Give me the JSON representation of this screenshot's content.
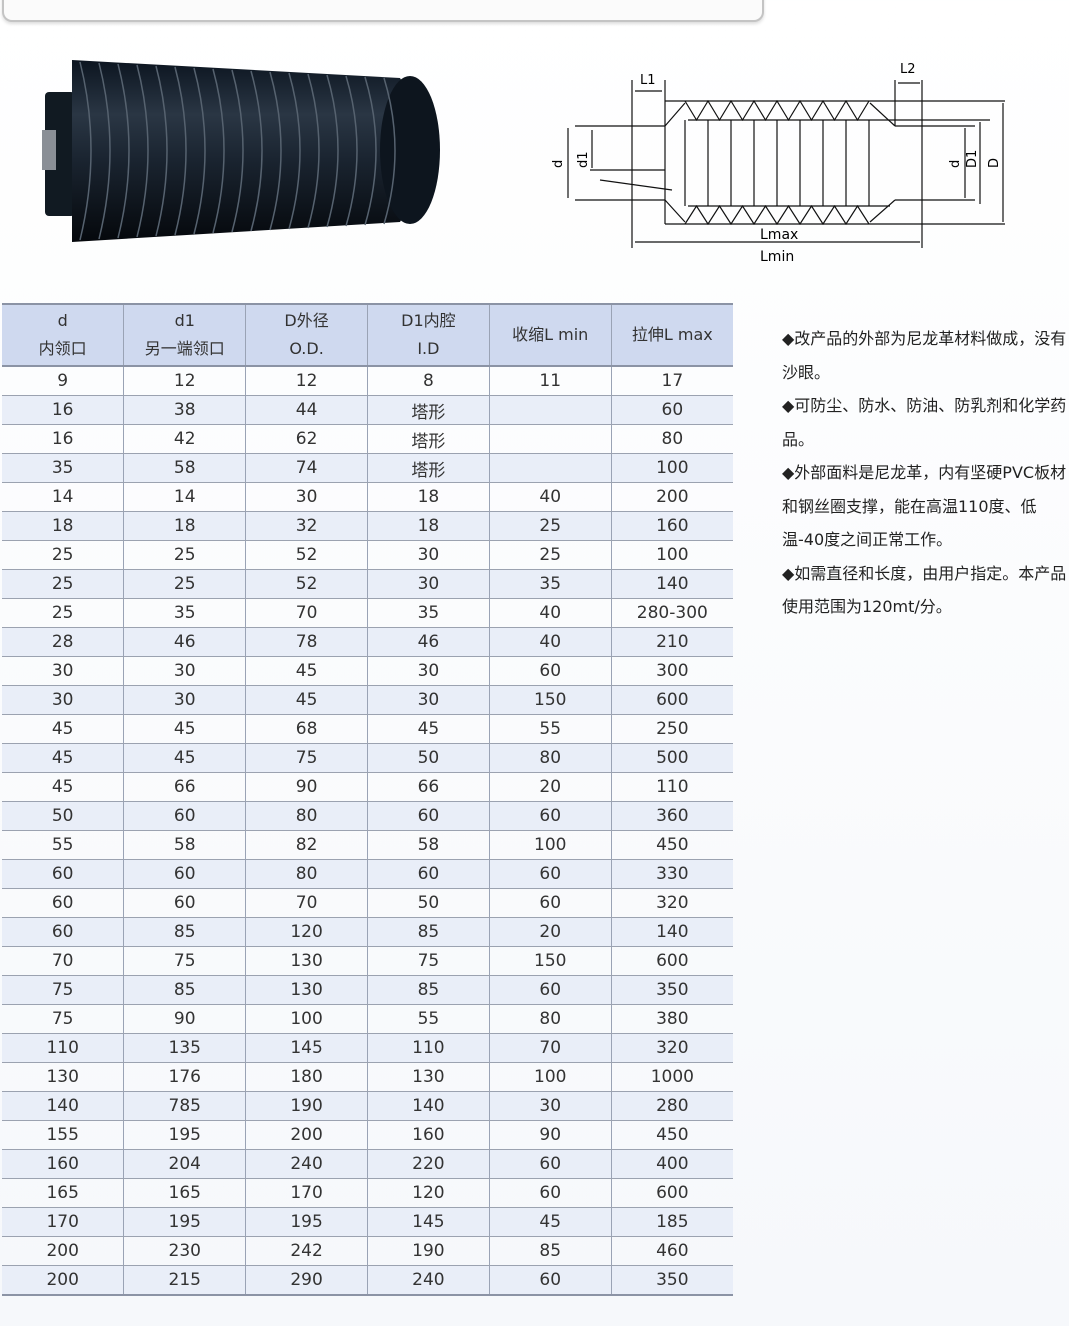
{
  "diagram": {
    "labels": {
      "L1": "L1",
      "L2": "L2",
      "d_left": "d",
      "d1": "d1",
      "d_right": "d",
      "D1": "D1",
      "D": "D",
      "Lmax": "Lmax",
      "Lmin": "Lmin"
    }
  },
  "table": {
    "headers": [
      [
        "d",
        "内领口"
      ],
      [
        "d1",
        "另一端领口"
      ],
      [
        "D外径",
        "O.D."
      ],
      [
        "D1内腔",
        "I.D"
      ],
      [
        "收缩L min"
      ],
      [
        "拉伸L max"
      ]
    ],
    "rows": [
      [
        "9",
        "12",
        "12",
        "8",
        "11",
        "17"
      ],
      [
        "16",
        "38",
        "44",
        "塔形",
        "",
        "60"
      ],
      [
        "16",
        "42",
        "62",
        "塔形",
        "",
        "80"
      ],
      [
        "35",
        "58",
        "74",
        "塔形",
        "",
        "100"
      ],
      [
        "14",
        "14",
        "30",
        "18",
        "40",
        "200"
      ],
      [
        "18",
        "18",
        "32",
        "18",
        "25",
        "160"
      ],
      [
        "25",
        "25",
        "52",
        "30",
        "25",
        "100"
      ],
      [
        "25",
        "25",
        "52",
        "30",
        "35",
        "140"
      ],
      [
        "25",
        "35",
        "70",
        "35",
        "40",
        "280-300"
      ],
      [
        "28",
        "46",
        "78",
        "46",
        "40",
        "210"
      ],
      [
        "30",
        "30",
        "45",
        "30",
        "60",
        "300"
      ],
      [
        "30",
        "30",
        "45",
        "30",
        "150",
        "600"
      ],
      [
        "45",
        "45",
        "68",
        "45",
        "55",
        "250"
      ],
      [
        "45",
        "45",
        "75",
        "50",
        "80",
        "500"
      ],
      [
        "45",
        "66",
        "90",
        "66",
        "20",
        "110"
      ],
      [
        "50",
        "60",
        "80",
        "60",
        "60",
        "360"
      ],
      [
        "55",
        "58",
        "82",
        "58",
        "100",
        "450"
      ],
      [
        "60",
        "60",
        "80",
        "60",
        "60",
        "330"
      ],
      [
        "60",
        "60",
        "70",
        "50",
        "60",
        "320"
      ],
      [
        "60",
        "85",
        "120",
        "85",
        "20",
        "140"
      ],
      [
        "70",
        "75",
        "130",
        "75",
        "150",
        "600"
      ],
      [
        "75",
        "85",
        "130",
        "85",
        "60",
        "350"
      ],
      [
        "75",
        "90",
        "100",
        "55",
        "80",
        "380"
      ],
      [
        "110",
        "135",
        "145",
        "110",
        "70",
        "320"
      ],
      [
        "130",
        "176",
        "180",
        "130",
        "100",
        "1000"
      ],
      [
        "140",
        "785",
        "190",
        "140",
        "30",
        "280"
      ],
      [
        "155",
        "195",
        "200",
        "160",
        "90",
        "450"
      ],
      [
        "160",
        "204",
        "240",
        "220",
        "60",
        "400"
      ],
      [
        "165",
        "165",
        "170",
        "120",
        "60",
        "600"
      ],
      [
        "170",
        "195",
        "195",
        "145",
        "45",
        "185"
      ],
      [
        "200",
        "230",
        "242",
        "190",
        "85",
        "460"
      ],
      [
        "200",
        "215",
        "290",
        "240",
        "60",
        "350"
      ]
    ]
  },
  "notes": [
    "◆改产品的外部为尼龙革材料做成，没有沙眼。",
    "◆可防尘、防水、防油、防乳剂和化学药品。",
    "◆外部面料是尼龙革，内有坚硬PVC板材和钢丝圈支撑，能在高温110度、低温-40度之间正常工作。",
    "◆如需直径和长度，由用户指定。本产品使用范围为120mt/分。"
  ]
}
